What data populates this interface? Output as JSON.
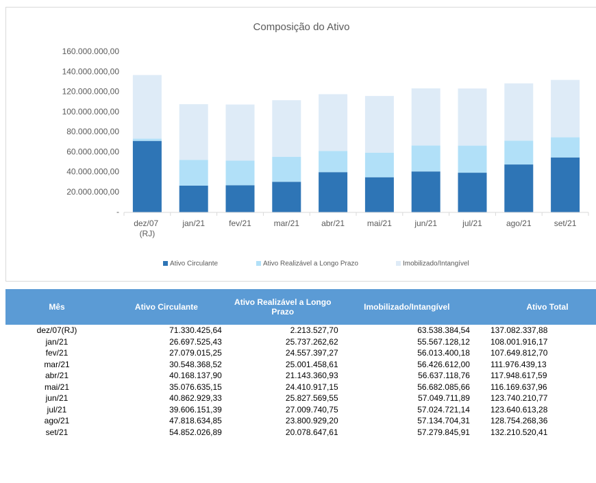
{
  "chart_data": {
    "type": "stacked_bar",
    "title": "Composição do Ativo",
    "categories": [
      "dez/07 (RJ)",
      "jan/21",
      "fev/21",
      "mar/21",
      "abr/21",
      "mai/21",
      "jun/21",
      "jul/21",
      "ago/21",
      "set/21"
    ],
    "series": [
      {
        "name": "Ativo Circulante",
        "color": "#2e75b6",
        "values": [
          71330425.64,
          26697525.43,
          27079015.25,
          30548368.52,
          40168137.9,
          35076635.15,
          40862929.33,
          39606151.39,
          47818634.85,
          54852026.89
        ]
      },
      {
        "name": "Ativo Realizável a Longo Prazo",
        "color": "#b1e0f8",
        "values": [
          2213527.7,
          25737262.62,
          24557397.27,
          25001458.61,
          21143360.93,
          24410917.15,
          25827569.55,
          27009740.75,
          23800929.2,
          20078647.61
        ]
      },
      {
        "name": "Imobilizado/Intangível",
        "color": "#deebf7",
        "values": [
          63538384.54,
          55567128.12,
          56013400.18,
          56426612.0,
          56637118.76,
          56682085.66,
          57049711.89,
          57024721.14,
          57134704.31,
          57279845.91
        ]
      }
    ],
    "ylim": [
      0,
      160000000
    ],
    "yticks": [
      {
        "value": 0,
        "label": "-"
      },
      {
        "value": 20000000,
        "label": "20.000.000,00"
      },
      {
        "value": 40000000,
        "label": "40.000.000,00"
      },
      {
        "value": 60000000,
        "label": "60.000.000,00"
      },
      {
        "value": 80000000,
        "label": "80.000.000,00"
      },
      {
        "value": 100000000,
        "label": "100.000.000,00"
      },
      {
        "value": 120000000,
        "label": "120.000.000,00"
      },
      {
        "value": 140000000,
        "label": "140.000.000,00"
      },
      {
        "value": 160000000,
        "label": "160.000.000,00"
      }
    ],
    "grid": false,
    "legend": "bottom"
  },
  "table": {
    "header": [
      "Mês",
      "Ativo Circulante",
      "Ativo Realizável a Longo Prazo",
      "Imobilizado/Intangível",
      "Ativo Total"
    ],
    "rows": [
      [
        "dez/07(RJ)",
        "71.330.425,64",
        "2.213.527,70",
        "63.538.384,54",
        "137.082.337,88"
      ],
      [
        "jan/21",
        "26.697.525,43",
        "25.737.262,62",
        "55.567.128,12",
        "108.001.916,17"
      ],
      [
        "fev/21",
        "27.079.015,25",
        "24.557.397,27",
        "56.013.400,18",
        "107.649.812,70"
      ],
      [
        "mar/21",
        "30.548.368,52",
        "25.001.458,61",
        "56.426.612,00",
        "111.976.439,13"
      ],
      [
        "abr/21",
        "40.168.137,90",
        "21.143.360,93",
        "56.637.118,76",
        "117.948.617,59"
      ],
      [
        "mai/21",
        "35.076.635,15",
        "24.410.917,15",
        "56.682.085,66",
        "116.169.637,96"
      ],
      [
        "jun/21",
        "40.862.929,33",
        "25.827.569,55",
        "57.049.711,89",
        "123.740.210,77"
      ],
      [
        "jul/21",
        "39.606.151,39",
        "27.009.740,75",
        "57.024.721,14",
        "123.640.613,28"
      ],
      [
        "ago/21",
        "47.818.634,85",
        "23.800.929,20",
        "57.134.704,31",
        "128.754.268,36"
      ],
      [
        "set/21",
        "54.852.026,89",
        "20.078.647,61",
        "57.279.845,91",
        "132.210.520,41"
      ]
    ]
  }
}
